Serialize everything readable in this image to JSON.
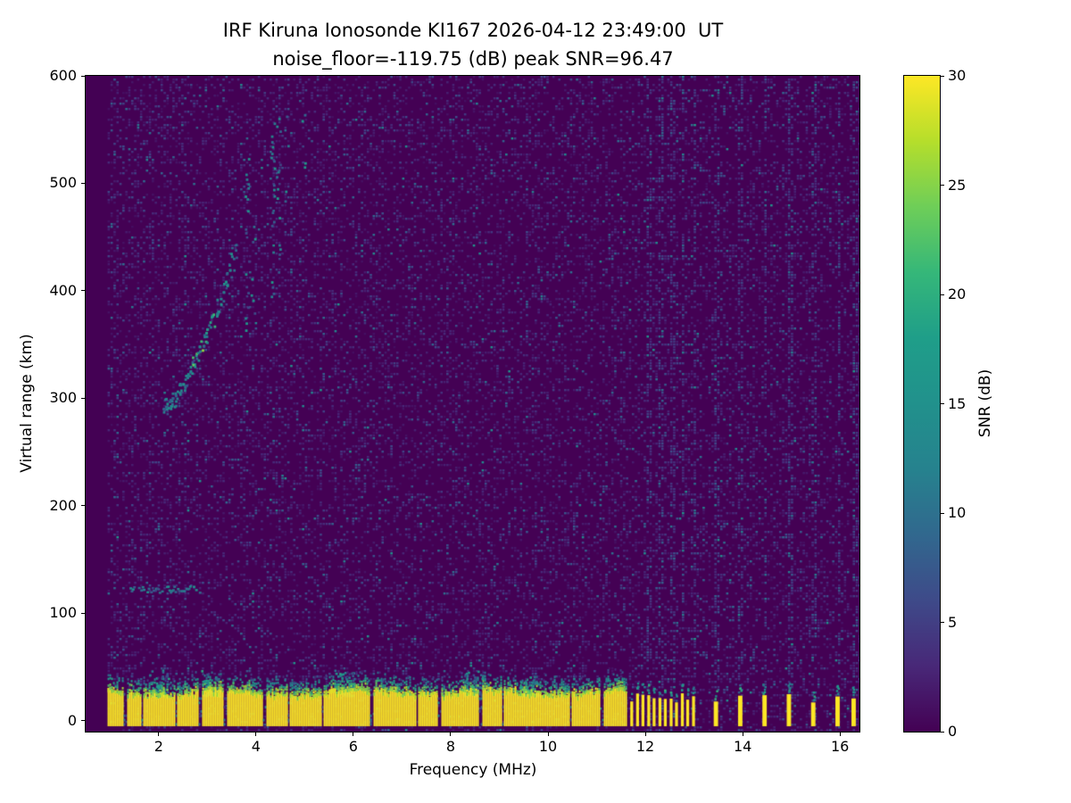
{
  "chart_data": {
    "type": "heatmap",
    "title": "IRF Kiruna Ionosonde KI167 2026-04-12 23:49:00  UT",
    "subtitle": "noise_floor=-119.75 (dB) peak SNR=96.47",
    "xlabel": "Frequency (MHz)",
    "ylabel": "Virtual range (km)",
    "xlim": [
      0.5,
      16.4
    ],
    "ylim": [
      -10,
      600
    ],
    "xticks": [
      2,
      4,
      6,
      8,
      10,
      12,
      14,
      16
    ],
    "yticks": [
      0,
      100,
      200,
      300,
      400,
      500,
      600
    ],
    "grid": false,
    "colorbar": {
      "label": "SNR (dB)",
      "ticks": [
        0,
        5,
        10,
        15,
        20,
        25,
        30
      ],
      "vmin": 0,
      "vmax": 30,
      "colormap": "viridis",
      "position": "right"
    },
    "features": {
      "noise_floor_db": -119.75,
      "peak_snr_db": 96.47,
      "data_f_start": 0.95,
      "ground_clutter_band": {
        "f_start": 0.95,
        "f_end": 11.62,
        "top_km": 27,
        "bottom_km": -5,
        "snr_db": 30
      },
      "band_notches_mhz": [
        1.3,
        1.65,
        2.35,
        2.85,
        3.35,
        4.15,
        4.65,
        5.35,
        6.35,
        7.3,
        7.75,
        8.6,
        9.05,
        10.45,
        11.1
      ],
      "band_bumps": [
        {
          "f": 2.0,
          "top_km": 52
        },
        {
          "f": 3.05,
          "top_km": 50
        },
        {
          "f": 5.8,
          "top_km": 58
        },
        {
          "f": 8.45,
          "top_km": 62
        },
        {
          "f": 9.6,
          "top_km": 48
        }
      ],
      "dense_stripes_mhz": [
        11.72,
        11.84,
        11.95,
        12.07,
        12.18,
        12.3,
        12.41,
        12.53,
        12.64,
        12.76,
        12.87,
        12.99
      ],
      "dense_stripe_width_mhz": 0.06,
      "sparse_stripes_mhz": [
        13.45,
        13.95,
        14.45,
        14.95,
        15.45,
        15.95,
        16.28
      ],
      "sparse_stripe_width_mhz": 0.09,
      "noise_columns_mhz": [
        12.07,
        12.3,
        12.53,
        12.76,
        12.99,
        13.45,
        13.95,
        14.45,
        14.95,
        15.45,
        15.95,
        16.28
      ],
      "es_layer": {
        "f_start": 1.4,
        "f_end": 2.85,
        "range_km": 123
      },
      "f_trace_points": [
        [
          2.1,
          295
        ],
        [
          2.15,
          296
        ],
        [
          2.2,
          297
        ],
        [
          2.25,
          298
        ],
        [
          2.3,
          301
        ],
        [
          2.35,
          304
        ],
        [
          2.4,
          307
        ],
        [
          2.45,
          311
        ],
        [
          2.5,
          314
        ],
        [
          2.55,
          318
        ],
        [
          2.6,
          322
        ],
        [
          2.65,
          327
        ],
        [
          2.7,
          331
        ],
        [
          2.75,
          336
        ],
        [
          2.8,
          341
        ],
        [
          2.85,
          347
        ],
        [
          2.9,
          352
        ],
        [
          2.95,
          358
        ],
        [
          3.0,
          363
        ],
        [
          3.05,
          369
        ],
        [
          3.1,
          374
        ],
        [
          3.15,
          380
        ],
        [
          3.2,
          386
        ],
        [
          3.25,
          392
        ],
        [
          3.3,
          398
        ],
        [
          3.35,
          405
        ],
        [
          3.4,
          412
        ],
        [
          3.45,
          420
        ],
        [
          3.5,
          428
        ],
        [
          3.55,
          437
        ]
      ],
      "vertical_echo_columns": [
        {
          "f": 3.8,
          "r_start": 360,
          "r_end": 525,
          "density": 0.55
        },
        {
          "f": 3.92,
          "r_start": 380,
          "r_end": 470,
          "density": 0.35
        },
        {
          "f": 4.33,
          "r_start": 395,
          "r_end": 555,
          "density": 0.55
        },
        {
          "f": 4.45,
          "r_start": 420,
          "r_end": 560,
          "density": 0.35
        },
        {
          "f": 4.62,
          "r_start": 440,
          "r_end": 565,
          "density": 0.25
        },
        {
          "f": 4.95,
          "r_start": 480,
          "r_end": 565,
          "density": 0.2
        },
        {
          "f": 5.2,
          "r_start": 510,
          "r_end": 565,
          "density": 0.15
        }
      ]
    }
  }
}
